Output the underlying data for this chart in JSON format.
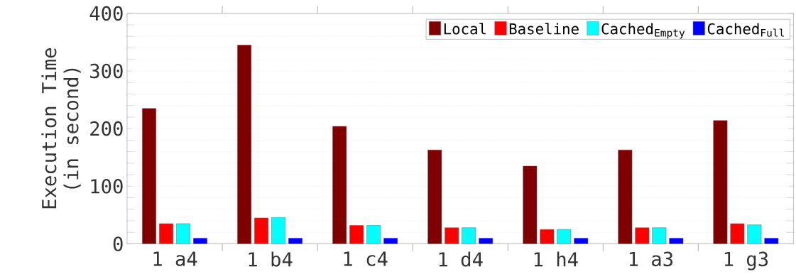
{
  "chart_data": {
    "type": "bar",
    "ylabel": "Execution Time\n(in second)",
    "categories": [
      "1 a4",
      "1 b4",
      "1 c4",
      "1 d4",
      "1 h4",
      "1 a3",
      "1 g3"
    ],
    "series": [
      {
        "name": "Local",
        "color": "#800000",
        "values": [
          235,
          345,
          204,
          163,
          135,
          163,
          214
        ]
      },
      {
        "name": "Baseline",
        "color": "#ff0000",
        "values": [
          35,
          45,
          32,
          28,
          25,
          28,
          35
        ]
      },
      {
        "name": "Cached$_{Empty}$",
        "color": "#00ffff",
        "values": [
          35,
          46,
          32,
          28,
          25,
          28,
          33
        ]
      },
      {
        "name": "Cached$_{Full}$",
        "color": "#0000ff",
        "values": [
          10,
          10,
          10,
          10,
          10,
          10,
          10
        ]
      }
    ],
    "ylim": [
      0,
      400
    ],
    "yticks": [
      0,
      100,
      200,
      300,
      400
    ],
    "grid": "y",
    "legend": "top right"
  }
}
